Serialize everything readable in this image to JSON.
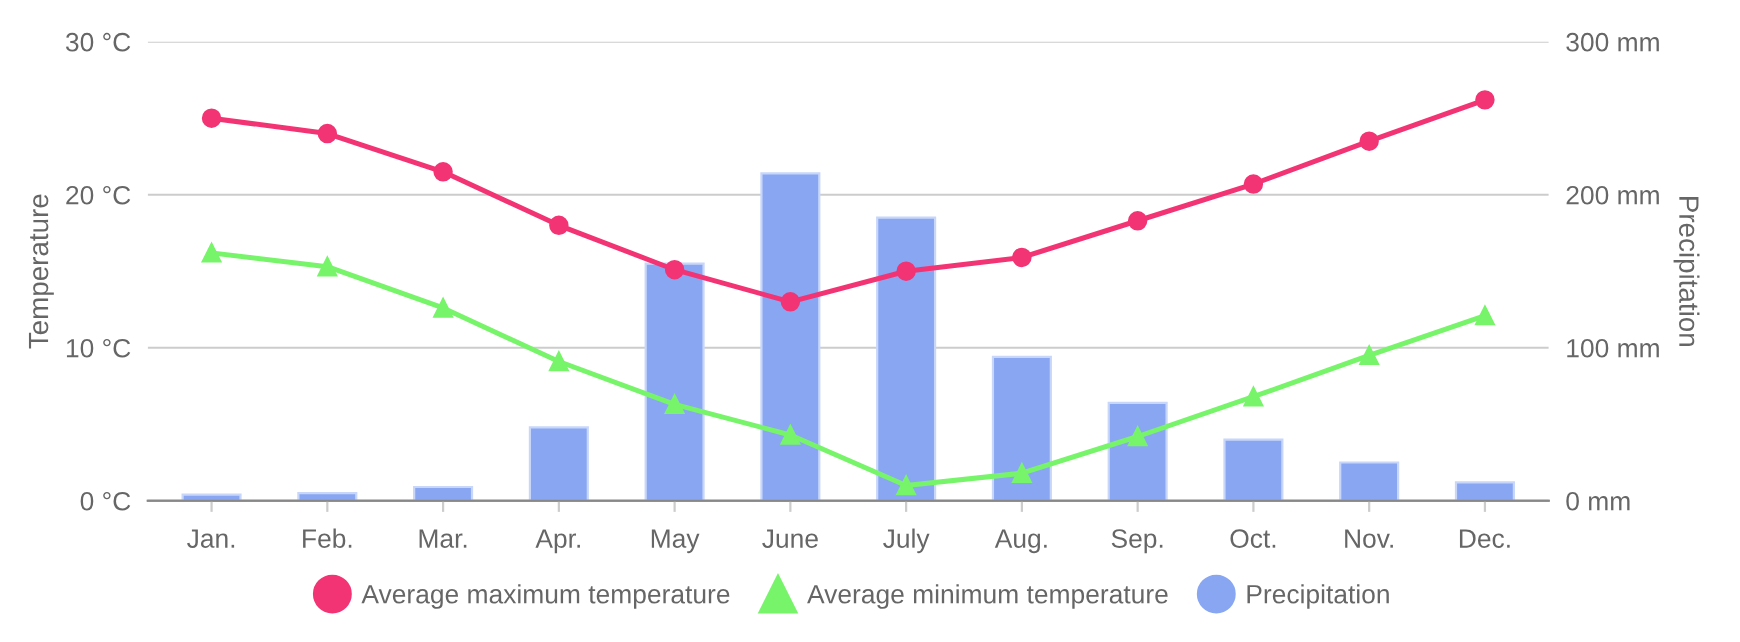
{
  "chart_data": {
    "type": "line",
    "ylabel": "Temperature",
    "y2label": "Precipitation",
    "categories": [
      "Jan.",
      "Feb.",
      "Mar.",
      "Apr.",
      "May",
      "June",
      "July",
      "Aug.",
      "Sep.",
      "Oct.",
      "Nov.",
      "Dec."
    ],
    "series": [
      {
        "name": "Precipitation",
        "type": "bar",
        "axis": "y2",
        "color": "#88a6f2",
        "values": [
          4,
          5,
          9,
          48,
          155,
          214,
          185,
          94,
          64,
          40,
          25,
          12
        ]
      },
      {
        "name": "Average maximum temperature",
        "marker": "circle",
        "color": "#f33474",
        "values": [
          25,
          24,
          21.5,
          18,
          15.1,
          13,
          15,
          15.9,
          18.3,
          20.7,
          23.5,
          26.2
        ]
      },
      {
        "name": "Average minimum temperature",
        "marker": "triangle",
        "color": "#77f46a",
        "values": [
          16.2,
          15.3,
          12.6,
          9.1,
          6.3,
          4.3,
          1.0,
          1.8,
          4.2,
          6.8,
          9.5,
          12.1
        ]
      }
    ],
    "ylim": [
      0,
      30
    ],
    "yticks": [
      {
        "value": 0,
        "label": "0 °C"
      },
      {
        "value": 10,
        "label": "10 °C"
      },
      {
        "value": 20,
        "label": "20 °C"
      },
      {
        "value": 30,
        "label": "30 °C"
      }
    ],
    "y2lim": [
      0,
      300
    ],
    "y2ticks": [
      {
        "value": 0,
        "label": "0 mm"
      },
      {
        "value": 100,
        "label": "100 mm"
      },
      {
        "value": 200,
        "label": "200 mm"
      },
      {
        "value": 300,
        "label": "300 mm"
      }
    ],
    "grid": "y",
    "legend": "bottom",
    "line_style": "solid"
  }
}
